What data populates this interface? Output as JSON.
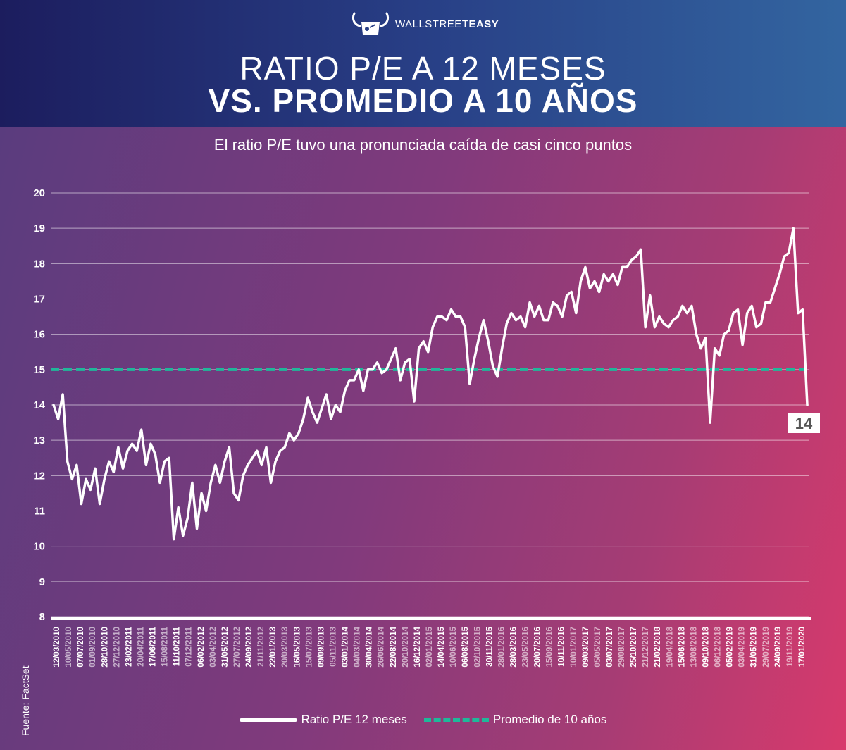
{
  "brand": {
    "light": "WALLSTREET",
    "bold": "EASY",
    "icon": "bull-hand-logo-icon"
  },
  "title_line1": "RATIO P/E A 12 MESES",
  "title_line2": "VS. PROMEDIO A 10 AÑOS",
  "subtitle": "El ratio P/E tuvo una pronunciada caída de casi cinco puntos",
  "source": "Fuente: FactSet",
  "colors": {
    "line": "#ffffff",
    "average": "#1fb89a",
    "label_bg": "#ffffff",
    "label_text": "#555555"
  },
  "chart_data": {
    "type": "line",
    "title": "RATIO P/E A 12 MESES VS. PROMEDIO A 10 AÑOS",
    "ylim": [
      8,
      20
    ],
    "yticks": [
      8,
      9,
      10,
      11,
      12,
      13,
      14,
      15,
      16,
      17,
      18,
      19,
      20
    ],
    "grid": true,
    "legend_position": "bottom-center",
    "x_tick_labels": [
      "12/03/2010",
      "10/05/2010",
      "07/07/2010",
      "01/09/2010",
      "28/10/2010",
      "27/12/2010",
      "23/02/2011",
      "20/04/2011",
      "17/06/2011",
      "15/08/2011",
      "11/10/2011",
      "07/12/2011",
      "06/02/2012",
      "03/04/2012",
      "31/05/2012",
      "27/07/2012",
      "24/09/2012",
      "21/11/2012",
      "22/01/2013",
      "20/03/2013",
      "16/05/2013",
      "15/07/2013",
      "09/09/2013",
      "05/11/2013",
      "03/01/2014",
      "04/03/2014",
      "30/04/2014",
      "26/06/2014",
      "22/08/2014",
      "20/10/2014",
      "16/12/2014",
      "02/01/2015",
      "14/04/2015",
      "10/06/2015",
      "06/08/2015",
      "02/10/2015",
      "30/11/2015",
      "28/01/2016",
      "28/03/2016",
      "23/05/2016",
      "20/07/2016",
      "15/09/2016",
      "10/11/2016",
      "10/01/2017",
      "09/03/2017",
      "05/05/2017",
      "03/07/2017",
      "29/08/2017",
      "25/10/2017",
      "21/12/2017",
      "21/02/2018",
      "19/04/2018",
      "15/06/2018",
      "13/08/2018",
      "09/10/2018",
      "06/12/2018",
      "05/02/2019",
      "03/04/2019",
      "31/05/2019",
      "29/07/2019",
      "24/09/2019",
      "19/11/2019",
      "17/01/2020"
    ],
    "series": [
      {
        "name": "Ratio P/E 12 meses",
        "style": "solid",
        "values": [
          14.0,
          13.6,
          14.3,
          12.4,
          11.9,
          12.3,
          11.2,
          11.9,
          11.6,
          12.2,
          11.2,
          11.9,
          12.4,
          12.1,
          12.8,
          12.2,
          12.7,
          12.9,
          12.7,
          13.3,
          12.3,
          12.9,
          12.6,
          11.8,
          12.4,
          12.5,
          10.2,
          11.1,
          10.3,
          10.8,
          11.8,
          10.5,
          11.5,
          11.0,
          11.8,
          12.3,
          11.8,
          12.4,
          12.8,
          11.5,
          11.3,
          12.0,
          12.3,
          12.5,
          12.7,
          12.3,
          12.8,
          11.8,
          12.4,
          12.7,
          12.8,
          13.2,
          13.0,
          13.2,
          13.6,
          14.2,
          13.8,
          13.5,
          13.9,
          14.3,
          13.6,
          14.0,
          13.8,
          14.4,
          14.7,
          14.7,
          15.0,
          14.4,
          15.0,
          15.0,
          15.2,
          14.9,
          15.0,
          15.3,
          15.6,
          14.7,
          15.2,
          15.3,
          14.1,
          15.6,
          15.8,
          15.5,
          16.2,
          16.5,
          16.5,
          16.4,
          16.7,
          16.5,
          16.5,
          16.2,
          14.6,
          15.3,
          15.9,
          16.4,
          15.8,
          15.1,
          14.8,
          15.6,
          16.3,
          16.6,
          16.4,
          16.5,
          16.2,
          16.9,
          16.5,
          16.8,
          16.4,
          16.4,
          16.9,
          16.8,
          16.5,
          17.1,
          17.2,
          16.6,
          17.5,
          17.9,
          17.3,
          17.5,
          17.2,
          17.7,
          17.5,
          17.7,
          17.4,
          17.9,
          17.9,
          18.1,
          18.2,
          18.4,
          16.2,
          17.1,
          16.2,
          16.5,
          16.3,
          16.2,
          16.4,
          16.5,
          16.8,
          16.6,
          16.8,
          16.0,
          15.6,
          15.9,
          13.5,
          15.6,
          15.4,
          16.0,
          16.1,
          16.6,
          16.7,
          15.7,
          16.6,
          16.8,
          16.2,
          16.3,
          16.9,
          16.9,
          17.3,
          17.7,
          18.2,
          18.3,
          19.0,
          16.6,
          16.7,
          14.0
        ]
      }
    ],
    "average": {
      "name": "Promedio de 10 años",
      "value": 15.0,
      "style": "dashed"
    },
    "last_value_label": "14"
  }
}
